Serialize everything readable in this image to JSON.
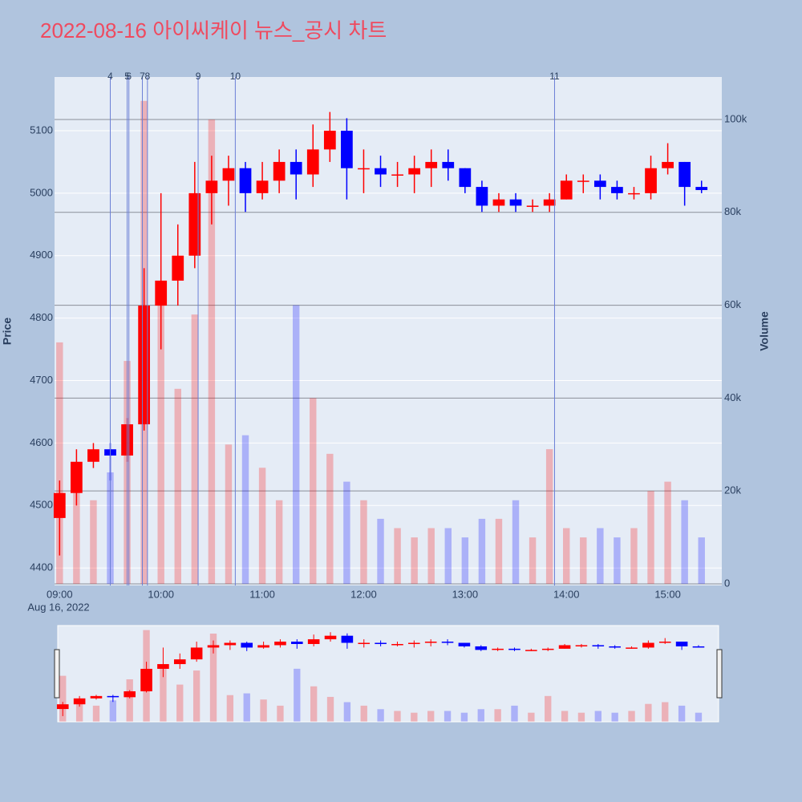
{
  "chart_data": {
    "type": "candlestick",
    "title": "2022-08-16 아이씨케이 뉴스_공시 차트",
    "ylabel": "Price",
    "y2label": "Volume",
    "x_date_label": "Aug 16, 2022",
    "xlim": [
      "2022-08-16 08:57",
      "2022-08-16 15:32"
    ],
    "xticks": [
      {
        "value": "2022-08-16 09:00",
        "label": "09:00"
      },
      {
        "value": "2022-08-16 10:00",
        "label": "10:00"
      },
      {
        "value": "2022-08-16 11:00",
        "label": "11:00"
      },
      {
        "value": "2022-08-16 12:00",
        "label": "12:00"
      },
      {
        "value": "2022-08-16 13:00",
        "label": "13:00"
      },
      {
        "value": "2022-08-16 14:00",
        "label": "14:00"
      },
      {
        "value": "2022-08-16 15:00",
        "label": "15:00"
      }
    ],
    "ylim": [
      4372,
      5186
    ],
    "yticks": [
      4400,
      4500,
      4600,
      4700,
      4800,
      4900,
      5000,
      5100
    ],
    "y2lim": [
      -350,
      109150
    ],
    "y2ticks": [
      0,
      {
        "value": 20000,
        "label": "20k"
      },
      {
        "value": 40000,
        "label": "40k"
      },
      {
        "value": 60000,
        "label": "60k"
      },
      {
        "value": 80000,
        "label": "80k"
      },
      {
        "value": 100000,
        "label": "100k"
      }
    ],
    "up_color": "#ff0000",
    "down_color": "#0000ff",
    "x": [
      "2022-08-16 09:00",
      "2022-08-16 09:10",
      "2022-08-16 09:20",
      "2022-08-16 09:30",
      "2022-08-16 09:40",
      "2022-08-16 09:50",
      "2022-08-16 10:00",
      "2022-08-16 10:10",
      "2022-08-16 10:20",
      "2022-08-16 10:30",
      "2022-08-16 10:40",
      "2022-08-16 10:50",
      "2022-08-16 11:00",
      "2022-08-16 11:10",
      "2022-08-16 11:20",
      "2022-08-16 11:30",
      "2022-08-16 11:40",
      "2022-08-16 11:50",
      "2022-08-16 12:00",
      "2022-08-16 12:10",
      "2022-08-16 12:20",
      "2022-08-16 12:30",
      "2022-08-16 12:40",
      "2022-08-16 12:50",
      "2022-08-16 13:00",
      "2022-08-16 13:10",
      "2022-08-16 13:20",
      "2022-08-16 13:30",
      "2022-08-16 13:40",
      "2022-08-16 13:50",
      "2022-08-16 14:00",
      "2022-08-16 14:10",
      "2022-08-16 14:20",
      "2022-08-16 14:30",
      "2022-08-16 14:40",
      "2022-08-16 14:50",
      "2022-08-16 15:00",
      "2022-08-16 15:10",
      "2022-08-16 15:20"
    ],
    "open": [
      4480,
      4520,
      4570,
      4590,
      4580,
      4630,
      4820,
      4860,
      4900,
      5000,
      5020,
      5040,
      5000,
      5020,
      5050,
      5030,
      5070,
      5100,
      5040,
      5040,
      5030,
      5030,
      5040,
      5050,
      5040,
      5010,
      4980,
      4990,
      4980,
      4980,
      4990,
      5020,
      5020,
      5010,
      5000,
      5000,
      5040,
      5050,
      5010
    ],
    "high": [
      4540,
      4590,
      4600,
      4600,
      4640,
      4880,
      5000,
      4950,
      5050,
      5060,
      5060,
      5050,
      5050,
      5070,
      5070,
      5110,
      5130,
      5120,
      5070,
      5060,
      5050,
      5060,
      5070,
      5070,
      5040,
      5020,
      5000,
      5000,
      4990,
      5000,
      5030,
      5030,
      5030,
      5020,
      5010,
      5060,
      5080,
      5050,
      5020
    ],
    "low": [
      4420,
      4500,
      4560,
      4540,
      4570,
      4620,
      4750,
      4820,
      4880,
      4950,
      4980,
      4970,
      4990,
      5000,
      4990,
      5010,
      5050,
      4990,
      5000,
      5010,
      5010,
      5000,
      5010,
      5020,
      5000,
      4970,
      4970,
      4970,
      4970,
      4970,
      4990,
      5000,
      4990,
      4990,
      4990,
      4990,
      5030,
      4980,
      5000
    ],
    "close": [
      4520,
      4570,
      4590,
      4580,
      4630,
      4820,
      4860,
      4900,
      5000,
      5020,
      5040,
      5000,
      5020,
      5050,
      5030,
      5070,
      5100,
      5040,
      5040,
      5030,
      5030,
      5040,
      5050,
      5040,
      5010,
      4980,
      4990,
      4980,
      4980,
      4990,
      5020,
      5020,
      5010,
      5000,
      5000,
      5040,
      5050,
      5010,
      5005
    ],
    "volume": {
      "name": "Volume",
      "axis": "y2",
      "values": [
        52000,
        22000,
        18000,
        24000,
        48000,
        104000,
        60000,
        42000,
        58000,
        100000,
        30000,
        32000,
        25000,
        18000,
        60000,
        40000,
        28000,
        22000,
        18000,
        14000,
        12000,
        10000,
        12000,
        12000,
        10000,
        14000,
        14000,
        18000,
        10000,
        29000,
        12000,
        10000,
        12000,
        10000,
        12000,
        20000,
        22000,
        18000,
        10000
      ]
    },
    "markers": [
      {
        "label": "4",
        "x": "2022-08-16 09:30"
      },
      {
        "label": "5",
        "x": "2022-08-16 09:40"
      },
      {
        "label": "6",
        "x": "2022-08-16 09:41"
      },
      {
        "label": "7",
        "x": "2022-08-16 09:49"
      },
      {
        "label": "8",
        "x": "2022-08-16 09:52"
      },
      {
        "label": "9",
        "x": "2022-08-16 10:22"
      },
      {
        "label": "10",
        "x": "2022-08-16 10:44"
      },
      {
        "label": "11",
        "x": "2022-08-16 13:53"
      }
    ]
  }
}
